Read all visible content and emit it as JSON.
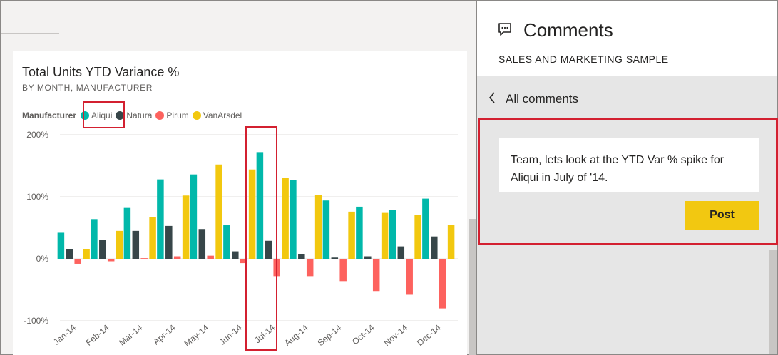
{
  "chart": {
    "title": "Total Units YTD Variance %",
    "subtitle": "BY MONTH, MANUFACTURER",
    "legend_title": "Manufacturer",
    "legend": [
      {
        "name": "Aliqui",
        "color": "#01b8aa"
      },
      {
        "name": "Natura",
        "color": "#374649"
      },
      {
        "name": "Pirum",
        "color": "#fd625e"
      },
      {
        "name": "VanArsdel",
        "color": "#f2c80f"
      }
    ]
  },
  "chart_data": {
    "type": "bar",
    "title": "Total Units YTD Variance %",
    "subtitle": "BY MONTH, MANUFACTURER",
    "xlabel": "",
    "ylabel": "",
    "categories": [
      "Jan-14",
      "Feb-14",
      "Mar-14",
      "Apr-14",
      "May-14",
      "Jun-14",
      "Jul-14",
      "Aug-14",
      "Sep-14",
      "Oct-14",
      "Nov-14",
      "Dec-14"
    ],
    "series": [
      {
        "name": "Aliqui",
        "color": "#01b8aa",
        "values": [
          42,
          64,
          82,
          128,
          136,
          54,
          172,
          127,
          94,
          84,
          79,
          97
        ]
      },
      {
        "name": "Natura",
        "color": "#374649",
        "values": [
          16,
          31,
          45,
          53,
          48,
          12,
          29,
          8,
          2,
          4,
          20,
          36
        ]
      },
      {
        "name": "Pirum",
        "color": "#fd625e",
        "values": [
          -8,
          -4,
          1,
          4,
          5,
          -7,
          -28,
          -28,
          -36,
          -52,
          -58,
          -80
        ]
      },
      {
        "name": "VanArsdel",
        "color": "#f2c80f",
        "values": [
          15,
          45,
          67,
          102,
          152,
          144,
          131,
          103,
          76,
          74,
          71,
          55
        ]
      }
    ],
    "yticks": [
      "200%",
      "100%",
      "0%",
      "-100%"
    ],
    "ytick_values": [
      200,
      100,
      0,
      -100
    ],
    "ylim": [
      -100,
      200
    ],
    "grid": true,
    "legend_position": "top-left"
  },
  "comments": {
    "title": "Comments",
    "subtitle": "SALES AND MARKETING SAMPLE",
    "back_label": "All comments",
    "draft_text": "Team, lets look at the YTD Var % spike for Aliqui in July of '14.",
    "post_label": "Post"
  },
  "icons": {
    "comments": "comment-bubble-icon",
    "back": "chevron-left-icon"
  }
}
